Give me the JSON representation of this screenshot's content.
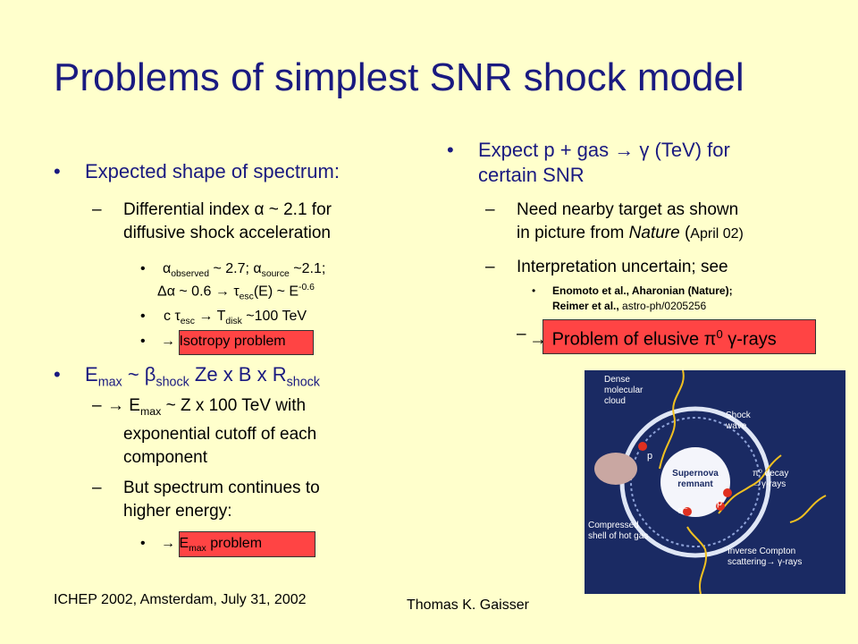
{
  "title": "Problems of simplest SNR shock model",
  "bullet": "•",
  "dash": "–",
  "arrow": "→",
  "left": {
    "b1": "Expected shape of spectrum",
    "b1_colon": ":",
    "b1_s1_a": "Differential index",
    "b1_s1_alpha": "α",
    "b1_s1_b": "~ 2.1 for",
    "b1_s1_c": "diffusive shock acceleration",
    "line_alpha": {
      "alpha": "α",
      "obs": "observed",
      "t1": " ~ 2.7; ",
      "src": "source",
      "t2": " ~2.1;"
    },
    "line_delta": {
      "delta": "Δα",
      "t1": " ~ 0.6 ",
      "tau": "τ",
      "esc": "esc",
      "t2": "(E) ~ E",
      "exp": "-0.6"
    },
    "line_tdisk": {
      "c": "c ",
      "tau": "τ",
      "esc": "esc",
      "T": "T",
      "disk": "disk",
      "t": " ~100 TeV"
    },
    "isotropy": "Isotropy problem",
    "b2": {
      "E": "E",
      "max": "max",
      "t1": " ~ ",
      "beta": "β",
      "shock": "shock",
      "t2": " Ze x B x R",
      "shock2": "shock"
    },
    "b2_s1": {
      "E": "E",
      "max": "max",
      "t1": " ~ Z x 100 TeV with",
      "l2": "exponential cutoff of each",
      "l3": "component"
    },
    "b2_s2": {
      "l1": "But spectrum continues to",
      "l2": "higher energy",
      "colon": ":"
    },
    "emax_problem": {
      "E": "E",
      "max": "max",
      "t": " problem"
    }
  },
  "right": {
    "b1": {
      "t1": "Expect p + gas ",
      "gamma": "γ",
      "t2": " (TeV) for",
      "l2": "certain SNR"
    },
    "s1": {
      "l1": "Need nearby target as shown",
      "l2a": "in picture from ",
      "nature": "Nature",
      "l2b": " (",
      "april": "April 02)"
    },
    "s2": "Interpretation uncertain; see",
    "refs": {
      "r1": "Enomoto et al., Aharonian (Nature);",
      "r2a": "Reimer et al., ",
      "r2b": "astro-ph/0205256"
    },
    "elusive": {
      "t1": "Problem of elusive ",
      "pi": "π",
      "zero": "0",
      "t2": " ",
      "gamma": "γ",
      "t3": "-rays"
    }
  },
  "figure": {
    "dense1": "Dense",
    "dense2": "molecular",
    "dense3": "cloud",
    "shock1": "Shock",
    "shock2": "wave",
    "sn1": "Supernova",
    "sn2": "remnant",
    "pi_decay": "π⁰ decay",
    "gamma1": "→γ-rays",
    "comp1": "Compressed",
    "comp2": "shell of hot gas",
    "ic1": "Inverse Compton",
    "ic2": "scattering→ γ-rays",
    "p": "p",
    "e": "e⁻"
  },
  "footer": {
    "left": "ICHEP 2002, Amsterdam, July 31, 2002",
    "right": "Thomas K. Gaisser"
  }
}
